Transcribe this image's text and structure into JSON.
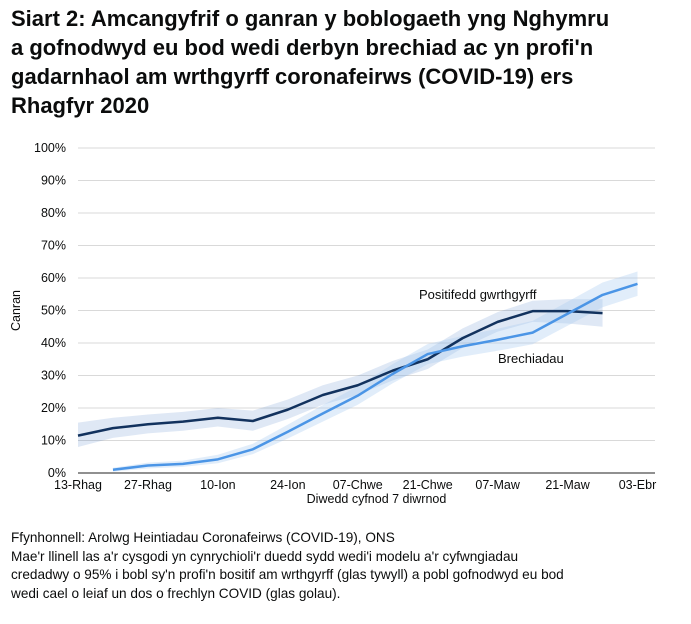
{
  "chart_data": {
    "type": "line",
    "title_lines": [
      "Siart 2: Amcangyfrif o ganran y boblogaeth yng Nghymru",
      "a gofnodwyd eu bod wedi derbyn brechiad ac yn profi'n",
      "gadarnhaol am wrthgyrff coronafeirws (COVID-19) ers",
      "Rhagfyr 2020"
    ],
    "ylabel": "Canran",
    "xlabel": "Diwedd cyfnod 7 diwrnod",
    "ylim": [
      0,
      100
    ],
    "y_ticks": [
      "0%",
      "10%",
      "20%",
      "30%",
      "40%",
      "50%",
      "60%",
      "70%",
      "80%",
      "90%",
      "100%"
    ],
    "y_tick_values": [
      0,
      10,
      20,
      30,
      40,
      50,
      60,
      70,
      80,
      90,
      100
    ],
    "x_ticks": [
      "13-Rhag",
      "27-Rhag",
      "10-Ion",
      "24-Ion",
      "07-Chwe",
      "21-Chwe",
      "07-Maw",
      "21-Maw",
      "03-Ebr"
    ],
    "x_tick_positions": [
      0,
      2,
      4,
      6,
      8,
      10,
      12,
      14,
      16
    ],
    "x_range": [
      0,
      16.5
    ],
    "grid": true,
    "series": [
      {
        "name": "Positifedd gwrthgyrff",
        "color": "#12325e",
        "band_color": "#1d5bb5",
        "x": [
          0,
          1,
          2,
          3,
          4,
          5,
          6,
          7,
          8,
          9,
          10,
          11,
          12,
          13,
          14,
          15
        ],
        "values": [
          11.5,
          13.8,
          15.0,
          15.8,
          17.0,
          16.0,
          19.5,
          24.0,
          27.0,
          31.5,
          35.0,
          41.5,
          46.5,
          49.8,
          49.8,
          49.2
        ],
        "lower": [
          8.0,
          10.8,
          12.2,
          13.0,
          14.3,
          13.0,
          16.6,
          21.0,
          24.0,
          28.5,
          32.0,
          38.5,
          43.5,
          46.5,
          46.0,
          45.0
        ],
        "upper": [
          15.5,
          17.0,
          18.0,
          18.8,
          20.0,
          19.2,
          22.6,
          27.0,
          30.0,
          34.5,
          38.0,
          44.5,
          49.5,
          53.0,
          53.5,
          53.5
        ]
      },
      {
        "name": "Brechiadau",
        "color": "#4b95e6",
        "band_color": "#a8ccf0",
        "x": [
          1,
          2,
          3,
          4,
          5,
          6,
          7,
          8,
          9,
          10,
          11,
          12,
          13,
          14,
          15,
          16
        ],
        "values": [
          1.0,
          2.3,
          2.8,
          4.2,
          7.3,
          12.7,
          18.3,
          23.8,
          30.5,
          36.6,
          39.0,
          41.0,
          43.2,
          49.0,
          54.8,
          58.2
        ],
        "lower": [
          0.4,
          1.4,
          1.9,
          3.0,
          5.8,
          10.6,
          15.8,
          21.0,
          27.6,
          33.5,
          35.8,
          37.6,
          39.6,
          45.3,
          51.0,
          54.5
        ],
        "upper": [
          1.6,
          3.2,
          3.8,
          5.6,
          9.0,
          14.9,
          20.9,
          26.7,
          33.5,
          39.7,
          42.2,
          44.4,
          46.8,
          52.7,
          58.6,
          62.0
        ]
      }
    ]
  },
  "footer": {
    "source": "Ffynhonnell: Arolwg Heintiadau Coronafeirws (COVID-19), ONS",
    "note_lines": [
      "Mae'r llinell las a'r cysgodi yn cynrychioli'r duedd sydd wedi'i modelu a'r cyfwngiadau",
      "credadwy o 95% i bobl sy'n profi'n bositif am wrthgyrff (glas tywyll) a pobl gofnodwyd eu bod",
      "wedi cael o leiaf un dos o frechlyn COVID (glas golau)."
    ]
  }
}
